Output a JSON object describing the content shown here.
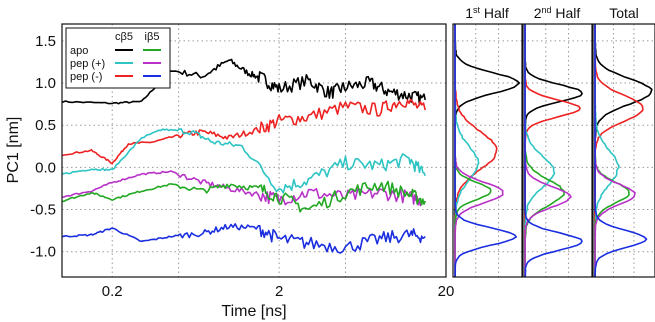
{
  "chart_data": [
    {
      "type": "line",
      "xlabel": "Time [ns]",
      "ylabel": "PC1 [nm]",
      "x_scale": "log",
      "xlim": [
        0.1,
        20
      ],
      "ylim": [
        -1.3,
        1.7
      ],
      "x_ticks": [
        0.2,
        2,
        20
      ],
      "x_tick_labels": [
        "0.2",
        "2",
        "20"
      ],
      "y_ticks": [
        -1.0,
        -0.5,
        0.0,
        0.5,
        1.0,
        1.5
      ],
      "y_tick_labels": [
        "-1.0",
        "-0.5",
        "0.0",
        "0.5",
        "1.0",
        "1.5"
      ],
      "grid": true,
      "legend": {
        "placement": "top-left",
        "column_headers": [
          "cβ5",
          "iβ5"
        ],
        "rows": [
          {
            "label": "apo",
            "colors": [
              "#000000",
              "#22a822"
            ]
          },
          {
            "label": "pep (+)",
            "colors": [
              "#2ec4c4",
              "#b832c8"
            ]
          },
          {
            "label": "pep (-)",
            "colors": [
              "#ee2222",
              "#1a2ee0"
            ]
          }
        ]
      },
      "series": [
        {
          "color": "#000000",
          "x": [
            0.1,
            0.2,
            0.3,
            0.45,
            0.7,
            1.0,
            1.3,
            1.6,
            2,
            3,
            4,
            5,
            7,
            9,
            12,
            15
          ],
          "y": [
            0.78,
            0.76,
            0.78,
            1.15,
            1.08,
            1.27,
            1.12,
            1.05,
            0.93,
            1.03,
            0.88,
            0.95,
            1.0,
            0.9,
            0.85,
            0.8
          ]
        },
        {
          "color": "#ee2222",
          "x": [
            0.1,
            0.15,
            0.2,
            0.25,
            0.35,
            0.5,
            0.7,
            1.0,
            1.5,
            2,
            3,
            5,
            8,
            11,
            15
          ],
          "y": [
            0.15,
            0.2,
            0.05,
            0.28,
            0.3,
            0.38,
            0.42,
            0.35,
            0.45,
            0.55,
            0.6,
            0.72,
            0.68,
            0.8,
            0.68
          ]
        },
        {
          "color": "#2ec4c4",
          "x": [
            0.1,
            0.15,
            0.2,
            0.3,
            0.4,
            0.6,
            0.8,
            1.2,
            2,
            3,
            5,
            8,
            12,
            15
          ],
          "y": [
            -0.08,
            -0.02,
            -0.03,
            0.35,
            0.45,
            0.42,
            0.3,
            0.25,
            -0.25,
            -0.15,
            0.05,
            0.02,
            0.1,
            -0.1
          ]
        },
        {
          "color": "#b832c8",
          "x": [
            0.1,
            0.15,
            0.2,
            0.3,
            0.45,
            0.7,
            1.0,
            1.5,
            2,
            3,
            5,
            8,
            12,
            15
          ],
          "y": [
            -0.35,
            -0.28,
            -0.18,
            -0.08,
            -0.05,
            -0.18,
            -0.25,
            -0.32,
            -0.38,
            -0.3,
            -0.35,
            -0.3,
            -0.35,
            -0.4
          ]
        },
        {
          "color": "#22a822",
          "x": [
            0.1,
            0.15,
            0.2,
            0.3,
            0.45,
            0.7,
            1.0,
            1.5,
            2,
            3,
            5,
            8,
            12,
            15
          ],
          "y": [
            -0.4,
            -0.3,
            -0.38,
            -0.28,
            -0.2,
            -0.28,
            -0.2,
            -0.25,
            -0.35,
            -0.5,
            -0.3,
            -0.2,
            -0.32,
            -0.4
          ]
        },
        {
          "color": "#1a2ee0",
          "x": [
            0.1,
            0.15,
            0.2,
            0.3,
            0.45,
            0.7,
            1.0,
            1.5,
            2,
            3,
            5,
            8,
            12,
            15
          ],
          "y": [
            -0.82,
            -0.8,
            -0.72,
            -0.88,
            -0.82,
            -0.78,
            -0.7,
            -0.72,
            -0.85,
            -0.9,
            -0.95,
            -0.85,
            -0.8,
            -0.82
          ]
        }
      ]
    },
    {
      "type": "line",
      "title": "1st Half",
      "title_main": "1",
      "title_sup": "st",
      "title_rest": " Half",
      "orientation": "horizontal-distribution",
      "ylim": [
        -1.3,
        1.7
      ],
      "grid": true,
      "series": [
        {
          "color": "#000000",
          "center": 1.0,
          "width": 0.12,
          "peak": 1.0
        },
        {
          "color": "#ee2222",
          "center": 0.2,
          "width": 0.22,
          "peak": 0.65
        },
        {
          "color": "#2ec4c4",
          "center": 0.05,
          "width": 0.2,
          "peak": 0.35
        },
        {
          "color": "#22a822",
          "center": -0.28,
          "width": 0.1,
          "peak": 0.55
        },
        {
          "color": "#b832c8",
          "center": -0.3,
          "width": 0.12,
          "peak": 0.75
        },
        {
          "color": "#1a2ee0",
          "center": -0.82,
          "width": 0.1,
          "peak": 0.95
        }
      ]
    },
    {
      "type": "line",
      "title": "2nd Half",
      "title_main": "2",
      "title_sup": "nd",
      "title_rest": " Half",
      "orientation": "horizontal-distribution",
      "ylim": [
        -1.3,
        1.7
      ],
      "grid": true,
      "series": [
        {
          "color": "#000000",
          "center": 0.88,
          "width": 0.1,
          "peak": 0.9
        },
        {
          "color": "#ee2222",
          "center": 0.7,
          "width": 0.1,
          "peak": 0.85
        },
        {
          "color": "#2ec4c4",
          "center": -0.05,
          "width": 0.18,
          "peak": 0.45
        },
        {
          "color": "#22a822",
          "center": -0.3,
          "width": 0.15,
          "peak": 0.6
        },
        {
          "color": "#b832c8",
          "center": -0.35,
          "width": 0.12,
          "peak": 0.7
        },
        {
          "color": "#1a2ee0",
          "center": -0.88,
          "width": 0.1,
          "peak": 0.9
        }
      ]
    },
    {
      "type": "line",
      "title": "Total",
      "orientation": "horizontal-distribution",
      "ylim": [
        -1.3,
        1.7
      ],
      "grid": true,
      "series": [
        {
          "color": "#000000",
          "center": 0.9,
          "width": 0.15,
          "peak": 1.0
        },
        {
          "color": "#ee2222",
          "center": 0.7,
          "width": 0.15,
          "peak": 0.85
        },
        {
          "color": "#2ec4c4",
          "center": 0.0,
          "width": 0.2,
          "peak": 0.4
        },
        {
          "color": "#22a822",
          "center": -0.3,
          "width": 0.12,
          "peak": 0.6
        },
        {
          "color": "#b832c8",
          "center": -0.32,
          "width": 0.12,
          "peak": 0.7
        },
        {
          "color": "#1a2ee0",
          "center": -0.85,
          "width": 0.1,
          "peak": 0.9
        }
      ]
    }
  ]
}
